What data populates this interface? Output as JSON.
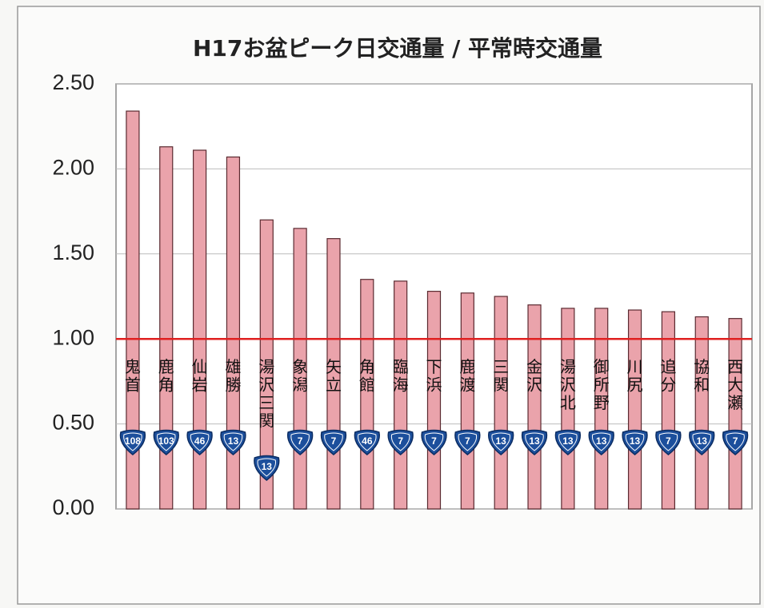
{
  "chart_data": {
    "type": "bar",
    "title": "H17お盆ピーク日交通量 / 平常時交通量",
    "categories": [
      "鬼首",
      "鹿角",
      "仙岩",
      "雄勝",
      "湯沢三関",
      "象潟",
      "矢立",
      "角館",
      "臨海",
      "下浜",
      "鹿渡",
      "三関",
      "金沢",
      "湯沢北",
      "御所野",
      "川尻",
      "追分",
      "協和",
      "西大瀬"
    ],
    "values": [
      2.34,
      2.13,
      2.11,
      2.07,
      1.7,
      1.65,
      1.59,
      1.35,
      1.34,
      1.28,
      1.27,
      1.25,
      1.2,
      1.18,
      1.18,
      1.17,
      1.16,
      1.13,
      1.12
    ],
    "route_numbers": [
      "108",
      "103",
      "46",
      "13",
      "13",
      "7",
      "7",
      "46",
      "7",
      "7",
      "7",
      "13",
      "13",
      "13",
      "13",
      "13",
      "7",
      "13",
      "7"
    ],
    "color": "#eaa3ab",
    "reference_line": {
      "value": 1,
      "color": "#e02020"
    },
    "ylim": [
      0,
      2.5
    ],
    "yticks": [
      {
        "value": 0,
        "label": "0.00"
      },
      {
        "value": 0.5,
        "label": "0.50"
      },
      {
        "value": 1,
        "label": "1.00"
      },
      {
        "value": 1.5,
        "label": "1.50"
      },
      {
        "value": 2,
        "label": "2.00"
      },
      {
        "value": 2.5,
        "label": "2.50"
      }
    ],
    "grid": true
  }
}
